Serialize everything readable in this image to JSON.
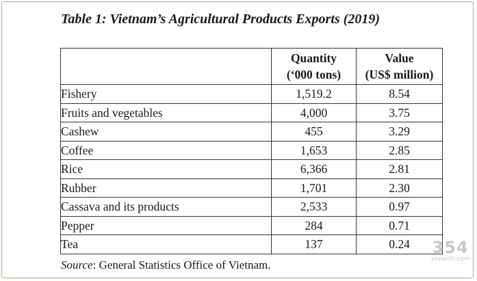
{
  "title": "Table 1: Vietnam’s Agricultural Products Exports (2019)",
  "table": {
    "headers": {
      "name": "",
      "quantity_line1": "Quantity",
      "quantity_line2": "(‘000 tons)",
      "value_line1": "Value",
      "value_line2": "(US$ million)"
    },
    "rows": [
      {
        "name": "Fishery",
        "quantity": "1,519.2",
        "value": "8.54"
      },
      {
        "name": "Fruits and vegetables",
        "quantity": "4,000",
        "value": "3.75"
      },
      {
        "name": "Cashew",
        "quantity": "455",
        "value": "3.29"
      },
      {
        "name": "Coffee",
        "quantity": "1,653",
        "value": "2.85"
      },
      {
        "name": "Rice",
        "quantity": "6,366",
        "value": "2.81"
      },
      {
        "name": "Rubber",
        "quantity": "1,701",
        "value": "2.30"
      },
      {
        "name": "Cassava and its products",
        "quantity": "2,533",
        "value": "0.97"
      },
      {
        "name": "Pepper",
        "quantity": "284",
        "value": "0.71"
      },
      {
        "name": "Tea",
        "quantity": "137",
        "value": "0.24"
      }
    ]
  },
  "source": {
    "label": "Source",
    "text": ": General Statistics Office of Vietnam."
  },
  "watermark": {
    "big": "354",
    "small": "vcearth.com"
  },
  "colors": {
    "frame_border": "#8cc45a",
    "text": "#1a1a1a",
    "watermark": "#c8c8c8"
  }
}
